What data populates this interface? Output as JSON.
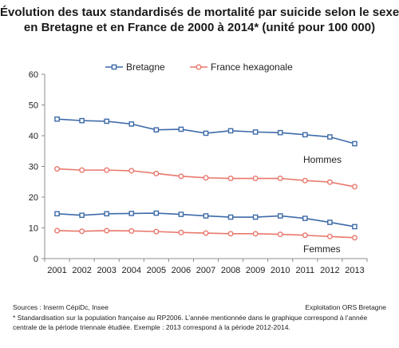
{
  "title_line1": "Évolution des taux standardisés de mortalité par suicide selon le sexe",
  "title_line2": "en Bretagne et en France de 2000 à 2014* (unité pour 100 000)",
  "annotations": {
    "men": "Hommes",
    "women": "Femmes"
  },
  "footer": {
    "sources": "Sources : Inserm CépiDc, Insee",
    "exploitation": "Exploitation ORS Bretagne",
    "note_line1": "* Standardisation sur la population française au RP2006. L’année mentionnée dans le graphique correspond à l’année",
    "note_line2": "centrale de la période triennale étudiée. Exemple : 2013 correspond à la période 2012-2014."
  },
  "chart_data": {
    "type": "line",
    "categories": [
      "2001",
      "2002",
      "2003",
      "2004",
      "2005",
      "2006",
      "2007",
      "2008",
      "2009",
      "2010",
      "2011",
      "2012",
      "2013"
    ],
    "ylim": [
      0,
      60
    ],
    "yticks": [
      0,
      10,
      20,
      30,
      40,
      50,
      60
    ],
    "grid": false,
    "legend_position": "top",
    "series": [
      {
        "name": "Bretagne",
        "group": "Hommes",
        "color": "#3d6aa8",
        "marker": "square",
        "values": [
          45.4,
          44.9,
          44.7,
          43.8,
          41.9,
          42.1,
          40.8,
          41.6,
          41.2,
          41.0,
          40.3,
          39.6,
          37.4
        ]
      },
      {
        "name": "France hexagonale",
        "group": "Hommes",
        "color": "#e8786c",
        "marker": "circle",
        "values": [
          29.2,
          28.8,
          28.8,
          28.6,
          27.7,
          26.8,
          26.3,
          26.1,
          26.1,
          26.1,
          25.4,
          24.9,
          23.4
        ]
      },
      {
        "name": "Bretagne",
        "group": "Femmes",
        "color": "#3d6aa8",
        "marker": "square",
        "values": [
          14.6,
          14.1,
          14.6,
          14.7,
          14.8,
          14.4,
          13.9,
          13.5,
          13.5,
          13.9,
          13.1,
          11.8,
          10.4
        ]
      },
      {
        "name": "France hexagonale",
        "group": "Femmes",
        "color": "#e8786c",
        "marker": "circle",
        "values": [
          9.1,
          8.9,
          9.1,
          9.0,
          8.8,
          8.5,
          8.3,
          8.1,
          8.1,
          7.9,
          7.6,
          7.2,
          6.8
        ]
      }
    ],
    "legend": [
      {
        "label": "Bretagne",
        "color": "#3d6aa8",
        "marker": "square"
      },
      {
        "label": "France hexagonale",
        "color": "#e8786c",
        "marker": "circle"
      }
    ]
  }
}
